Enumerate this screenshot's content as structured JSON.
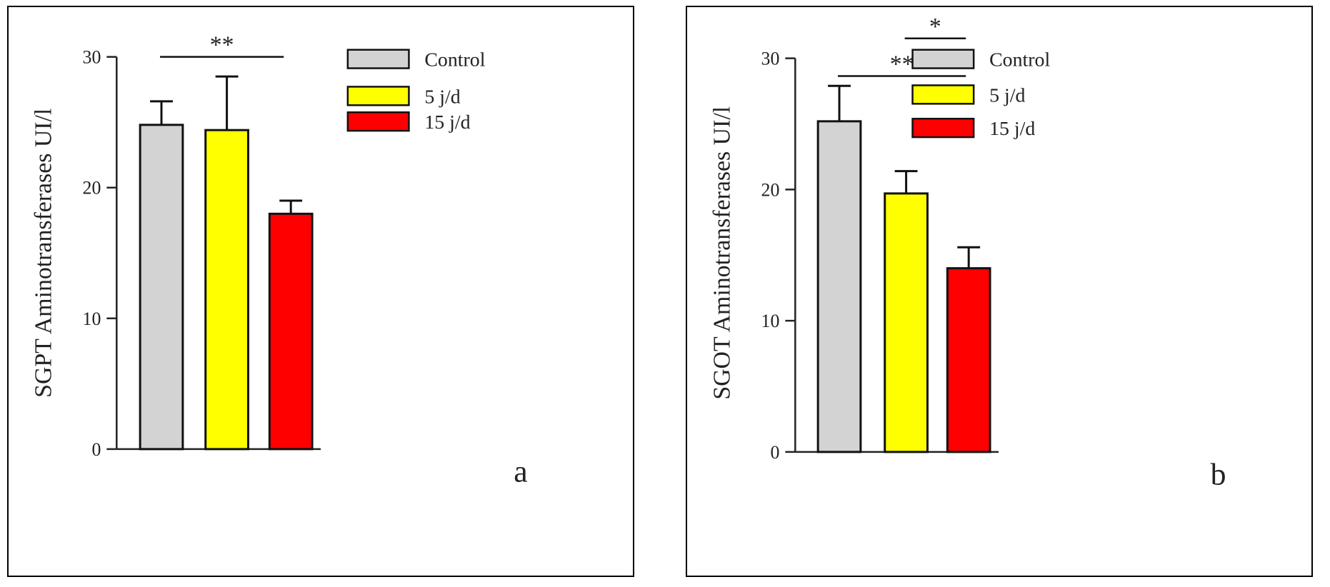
{
  "colors": {
    "Control": "#d3d3d3",
    "5 j/d": "#ffff00",
    "15 j/d": "#ff0000"
  },
  "chart_data": [
    {
      "type": "bar",
      "panel_label": "a",
      "title": "",
      "xlabel": "",
      "ylabel": "SGPT Aminotransferases  UI/l",
      "ylim": [
        0,
        30
      ],
      "yticks": [
        0,
        10,
        20,
        30
      ],
      "ytick_labels": [
        "0",
        "10",
        "20",
        "30"
      ],
      "categories": [
        "Control",
        "5 j/d",
        "15 j/d"
      ],
      "values": [
        24.8,
        24.4,
        18.0
      ],
      "errors": [
        1.8,
        4.1,
        1.0
      ],
      "legend": [
        "Control",
        "5 j/d",
        "15 j/d"
      ],
      "legend_position": "top-right",
      "significance": [
        {
          "from": "Control",
          "to": "15 j/d",
          "label": "**"
        }
      ]
    },
    {
      "type": "bar",
      "panel_label": "b",
      "title": "",
      "xlabel": "",
      "ylabel": "SGOT Aminotransferases  UI/l",
      "ylim": [
        0,
        30
      ],
      "yticks": [
        0,
        10,
        20,
        30
      ],
      "ytick_labels": [
        "0",
        "10",
        "20",
        "30"
      ],
      "categories": [
        "Control",
        "5 j/d",
        "15 j/d"
      ],
      "values": [
        25.2,
        19.7,
        14.0
      ],
      "errors": [
        2.7,
        1.7,
        1.6
      ],
      "legend": [
        "Control",
        "5 j/d",
        "15 j/d"
      ],
      "legend_position": "top-right",
      "significance": [
        {
          "from": "Control",
          "to": "15 j/d",
          "label": "**"
        },
        {
          "from": "5 j/d",
          "to": "15 j/d",
          "label": "*"
        }
      ]
    }
  ]
}
